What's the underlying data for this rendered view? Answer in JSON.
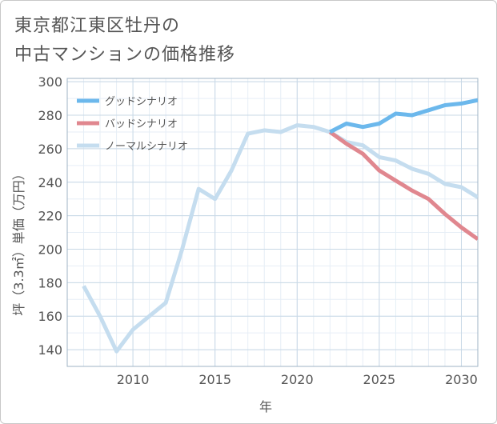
{
  "chart_data": {
    "type": "line",
    "title": "東京都江東区牡丹の中古マンションの価格推移",
    "title_lines": [
      "東京都江東区牡丹の",
      "中古マンションの価格推移"
    ],
    "xlabel": "年",
    "ylabel": "坪（3.3㎡）単価（万円）",
    "xlim": [
      2006,
      2031
    ],
    "ylim": [
      130,
      302
    ],
    "xticks": [
      2010,
      2015,
      2020,
      2025,
      2030
    ],
    "yticks": [
      140,
      160,
      180,
      200,
      220,
      240,
      260,
      280,
      300
    ],
    "grid": true,
    "legend_position": "top-left",
    "series": [
      {
        "name": "グッドシナリオ",
        "color": "#6cb8ec",
        "x": [
          2022,
          2023,
          2024,
          2025,
          2026,
          2027,
          2028,
          2029,
          2030,
          2031
        ],
        "values": [
          270,
          275,
          273,
          275,
          281,
          280,
          283,
          286,
          287,
          289
        ]
      },
      {
        "name": "バッドシナリオ",
        "color": "#e0878f",
        "x": [
          2022,
          2023,
          2024,
          2025,
          2026,
          2027,
          2028,
          2029,
          2030,
          2031
        ],
        "values": [
          270,
          263,
          257,
          247,
          241,
          235,
          230,
          221,
          213,
          206
        ]
      },
      {
        "name": "ノーマルシナリオ",
        "color": "#c5ddef",
        "x": [
          2007,
          2008,
          2009,
          2010,
          2011,
          2012,
          2013,
          2014,
          2015,
          2016,
          2017,
          2018,
          2019,
          2020,
          2021,
          2022,
          2023,
          2024,
          2025,
          2026,
          2027,
          2028,
          2029,
          2030,
          2031
        ],
        "values": [
          178,
          160,
          139,
          152,
          160,
          168,
          200,
          236,
          230,
          247,
          269,
          271,
          270,
          274,
          273,
          270,
          264,
          262,
          255,
          253,
          248,
          245,
          239,
          237,
          231
        ]
      }
    ]
  }
}
